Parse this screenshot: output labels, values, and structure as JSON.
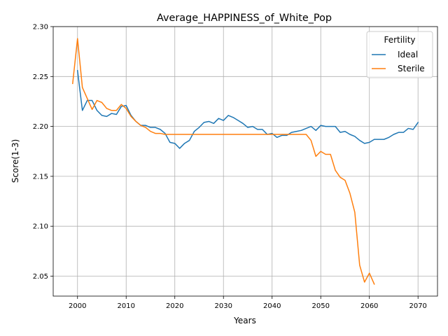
{
  "chart_data": {
    "type": "line",
    "title": "Average_HAPPINESS_of_White_Pop",
    "xlabel": "Years",
    "ylabel": "Score(1-3)",
    "xlim": [
      1995,
      2074
    ],
    "ylim": [
      2.03,
      2.3
    ],
    "xticks": [
      2000,
      2010,
      2020,
      2030,
      2040,
      2050,
      2060,
      2070
    ],
    "xtick_labels": [
      "2000",
      "2010",
      "2020",
      "2030",
      "2040",
      "2050",
      "2060",
      "2070"
    ],
    "yticks": [
      2.05,
      2.1,
      2.15,
      2.2,
      2.25,
      2.3
    ],
    "ytick_labels": [
      "2.05",
      "2.10",
      "2.15",
      "2.20",
      "2.25",
      "2.30"
    ],
    "grid": true,
    "legend": {
      "title": "Fertility",
      "position": "top-right"
    },
    "series": [
      {
        "name": "Ideal",
        "color": "#1f77b4",
        "x": [
          2000,
          2001,
          2002,
          2003,
          2004,
          2005,
          2006,
          2007,
          2008,
          2009,
          2010,
          2011,
          2012,
          2013,
          2014,
          2015,
          2016,
          2017,
          2018,
          2019,
          2020,
          2021,
          2022,
          2023,
          2024,
          2025,
          2026,
          2027,
          2028,
          2029,
          2030,
          2031,
          2032,
          2033,
          2034,
          2035,
          2036,
          2037,
          2038,
          2039,
          2040,
          2041,
          2042,
          2043,
          2044,
          2045,
          2046,
          2047,
          2048,
          2049,
          2050,
          2051,
          2052,
          2053,
          2054,
          2055,
          2056,
          2057,
          2058,
          2059,
          2060,
          2061,
          2062,
          2063,
          2064,
          2065,
          2066,
          2067,
          2068,
          2069,
          2070
        ],
        "values": [
          2.256,
          2.216,
          2.226,
          2.226,
          2.216,
          2.211,
          2.21,
          2.213,
          2.212,
          2.22,
          2.221,
          2.211,
          2.205,
          2.201,
          2.201,
          2.199,
          2.199,
          2.197,
          2.193,
          2.184,
          2.183,
          2.178,
          2.183,
          2.186,
          2.195,
          2.199,
          2.204,
          2.205,
          2.203,
          2.208,
          2.206,
          2.211,
          2.209,
          2.206,
          2.203,
          2.199,
          2.2,
          2.197,
          2.197,
          2.192,
          2.193,
          2.189,
          2.191,
          2.191,
          2.194,
          2.195,
          2.196,
          2.198,
          2.2,
          2.196,
          2.201,
          2.2,
          2.2,
          2.2,
          2.194,
          2.195,
          2.192,
          2.19,
          2.186,
          2.183,
          2.184,
          2.187,
          2.187,
          2.187,
          2.189,
          2.192,
          2.194,
          2.194,
          2.198,
          2.197,
          2.204
        ]
      },
      {
        "name": "Sterile",
        "color": "#ff7f0e",
        "x": [
          1999,
          2000,
          2001,
          2002,
          2003,
          2004,
          2005,
          2006,
          2007,
          2008,
          2009,
          2010,
          2011,
          2012,
          2013,
          2014,
          2015,
          2016,
          2017,
          2018,
          2019,
          2020,
          2021,
          2022,
          2023,
          2024,
          2025,
          2026,
          2027,
          2028,
          2029,
          2030,
          2031,
          2032,
          2033,
          2034,
          2035,
          2036,
          2037,
          2038,
          2039,
          2040,
          2041,
          2042,
          2043,
          2044,
          2045,
          2046,
          2047,
          2048,
          2049,
          2050,
          2051,
          2052,
          2053,
          2054,
          2055,
          2056,
          2057,
          2058,
          2059,
          2060,
          2061
        ],
        "values": [
          2.243,
          2.288,
          2.239,
          2.228,
          2.217,
          2.226,
          2.224,
          2.218,
          2.216,
          2.216,
          2.222,
          2.218,
          2.21,
          2.205,
          2.201,
          2.199,
          2.195,
          2.193,
          2.193,
          2.192,
          2.192,
          2.192,
          2.192,
          2.192,
          2.192,
          2.192,
          2.192,
          2.192,
          2.192,
          2.192,
          2.192,
          2.192,
          2.192,
          2.192,
          2.192,
          2.192,
          2.192,
          2.192,
          2.192,
          2.192,
          2.192,
          2.192,
          2.192,
          2.192,
          2.192,
          2.192,
          2.192,
          2.192,
          2.192,
          2.186,
          2.17,
          2.175,
          2.172,
          2.172,
          2.156,
          2.149,
          2.146,
          2.133,
          2.114,
          2.061,
          2.044,
          2.053,
          2.042
        ]
      }
    ]
  }
}
